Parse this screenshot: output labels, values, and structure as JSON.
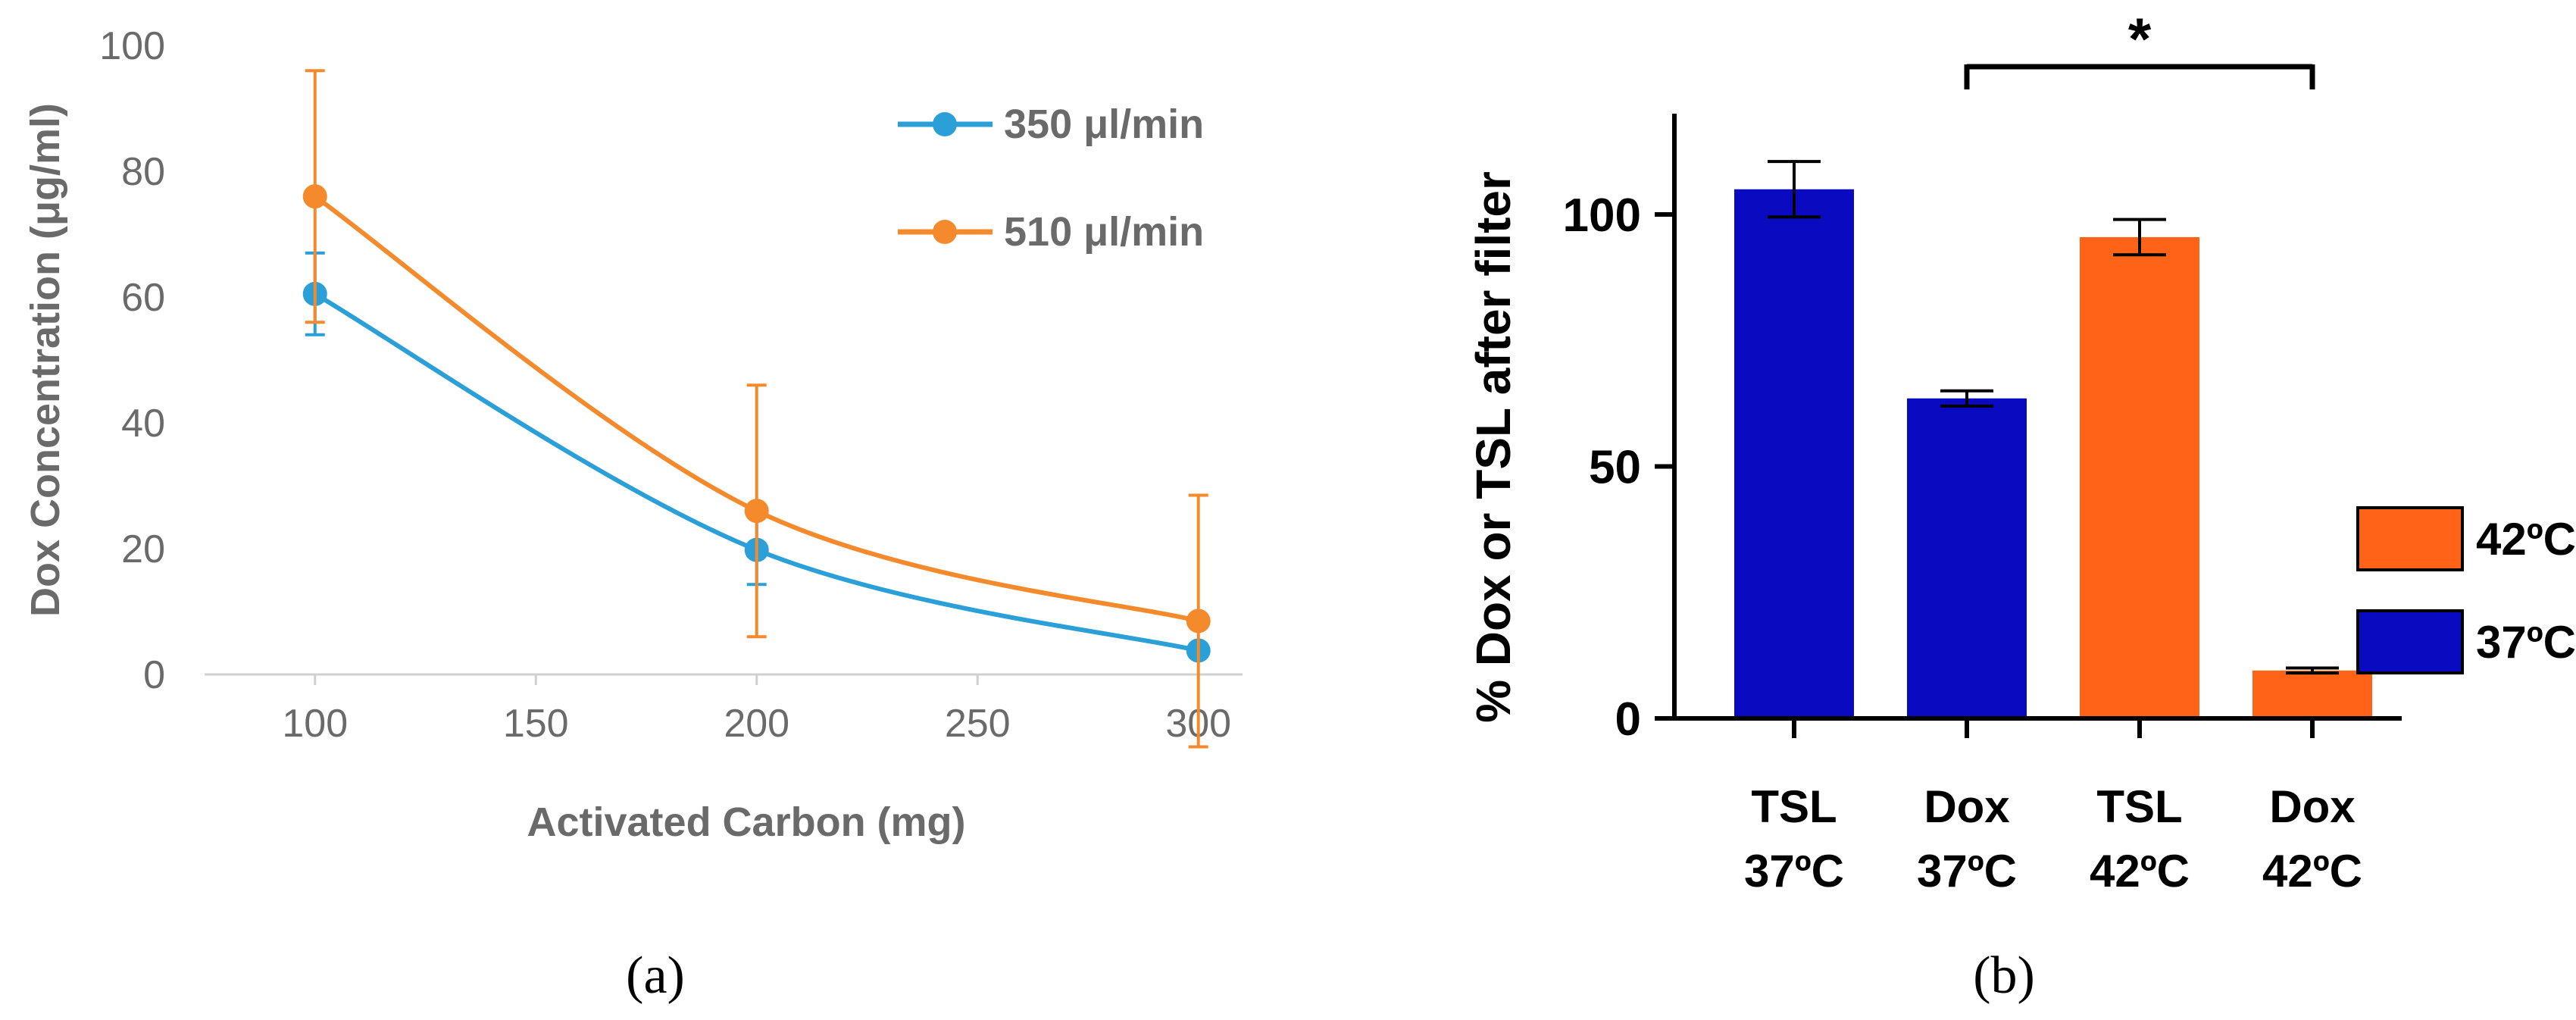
{
  "chart_data": [
    {
      "type": "line",
      "panel_label": "(a)",
      "xlabel": "Activated Carbon (mg)",
      "ylabel": "Dox Concentration (μg/ml)",
      "xlim": [
        75,
        310
      ],
      "ylim": [
        0,
        100
      ],
      "xticks": [
        100,
        150,
        200,
        250,
        300
      ],
      "yticks": [
        0,
        20,
        40,
        60,
        80,
        100
      ],
      "grid": false,
      "legend_position": "top-right",
      "x": [
        100,
        200,
        300
      ],
      "series": [
        {
          "name": "350 μl/min",
          "color": "#2a9fd8",
          "values": [
            60.5,
            19.8,
            3.8
          ],
          "errors": [
            6.5,
            5.5,
            0
          ]
        },
        {
          "name": "510 μl/min",
          "color": "#f58a2c",
          "values": [
            76,
            26,
            8.5
          ],
          "errors": [
            20,
            20,
            20
          ]
        }
      ]
    },
    {
      "type": "bar",
      "panel_label": "(b)",
      "xlabel": "",
      "ylabel": "% Dox or TSL after filter",
      "ylim": [
        0,
        120
      ],
      "yticks": [
        0,
        50,
        100
      ],
      "grid": false,
      "legend_position": "right",
      "categories": [
        {
          "line1": "TSL",
          "line2": "37ºC"
        },
        {
          "line1": "Dox",
          "line2": "37ºC"
        },
        {
          "line1": "TSL",
          "line2": "42ºC"
        },
        {
          "line1": "Dox",
          "line2": "42ºC"
        }
      ],
      "values": [
        105,
        63.5,
        95.5,
        9.5
      ],
      "errors": [
        5.5,
        1.5,
        3.5,
        0.5
      ],
      "bar_groups": [
        "37ºC",
        "37ºC",
        "42ºC",
        "42ºC"
      ],
      "legend": [
        {
          "name": "42ºC",
          "color": "#ff6317"
        },
        {
          "name": "37ºC",
          "color": "#0a0ac0"
        }
      ],
      "significance": {
        "from_category": 1,
        "to_category": 3,
        "label": "*"
      }
    }
  ]
}
